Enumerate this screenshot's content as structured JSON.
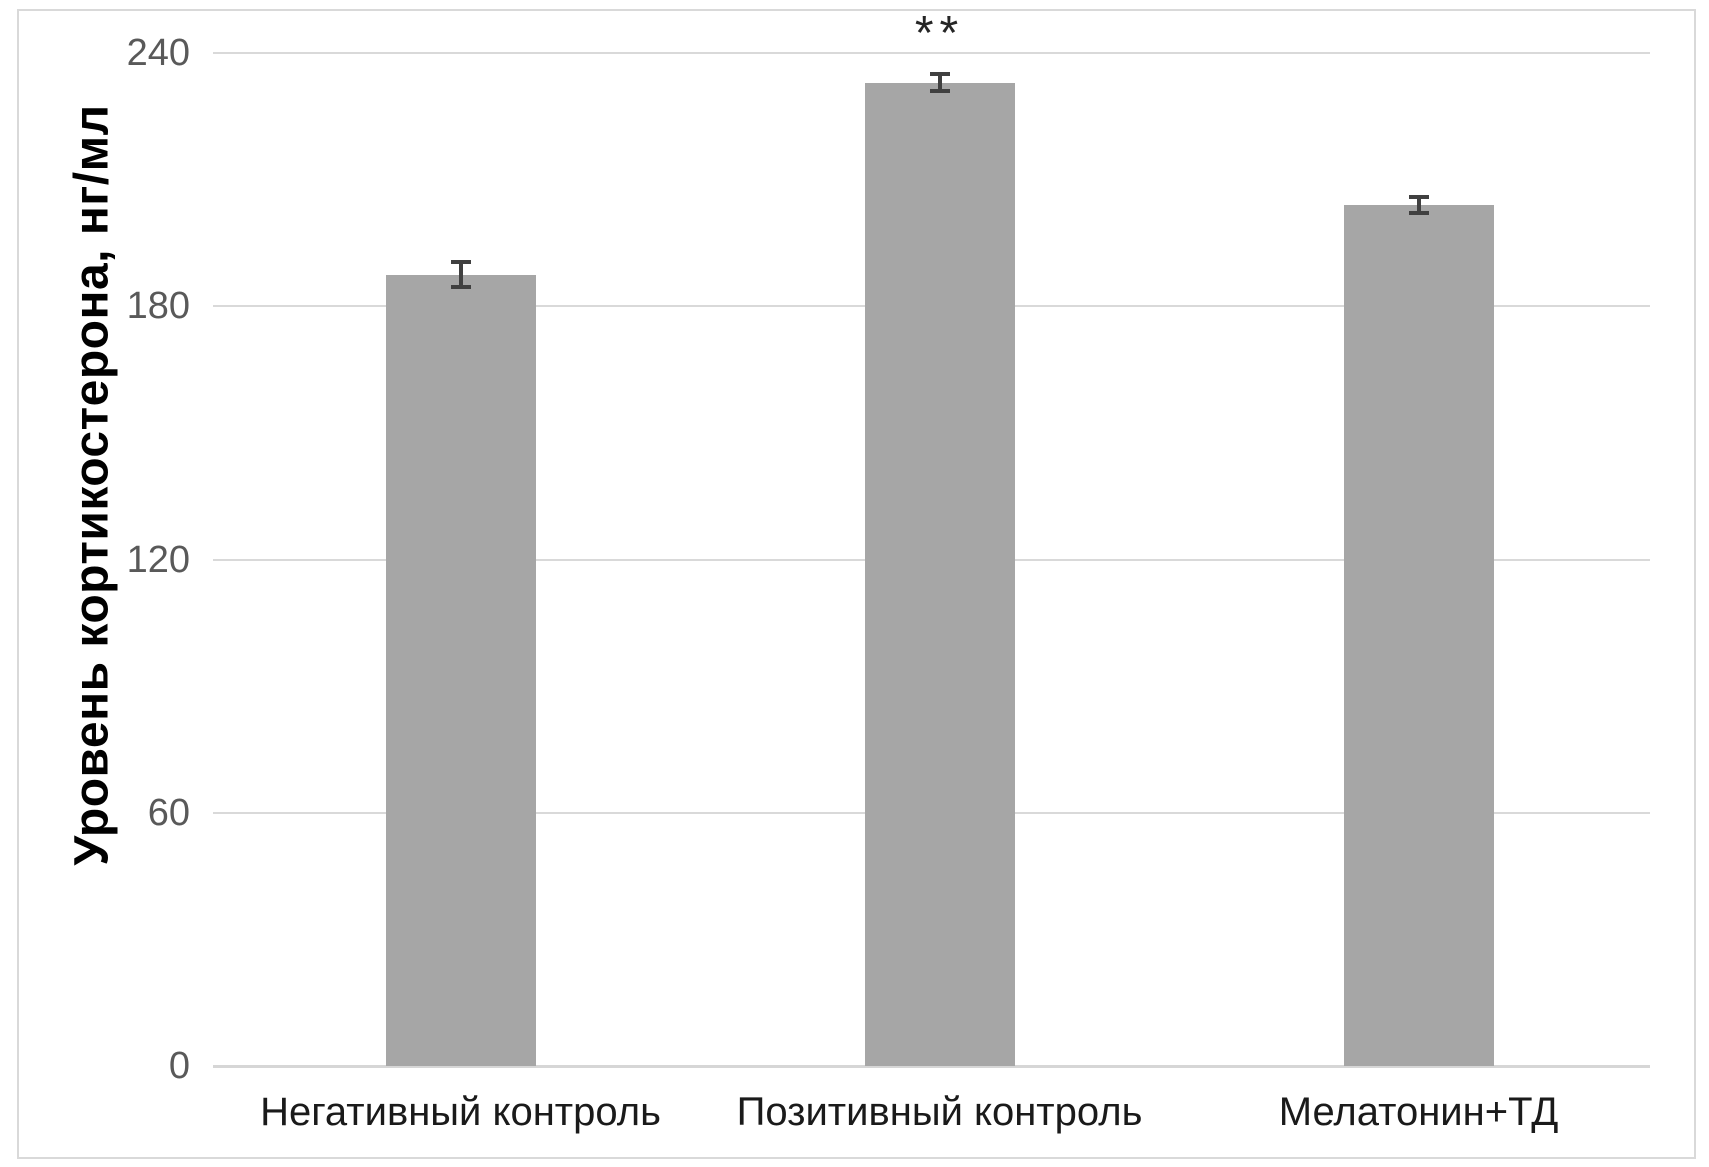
{
  "chart_data": {
    "type": "bar",
    "title": "",
    "categories": [
      "Негативный контроль",
      "Позитивный контроль",
      "Мелатонин+ТД"
    ],
    "values": [
      187.5,
      233,
      204
    ],
    "error_bars": [
      3,
      2.1,
      2
    ],
    "annotations": [
      {
        "category_index": 1,
        "text": "**"
      }
    ],
    "xlabel": "",
    "ylabel": "Уровень кортикостерона, нг/мл",
    "ylim": [
      0,
      240
    ],
    "yticks": [
      0,
      60,
      120,
      180,
      240
    ],
    "grid": true,
    "legend": false,
    "colors": {
      "bar_fill": "#a6a6a6",
      "error_bar": "#404040",
      "gridline": "#d9d9d9",
      "axis_line": "#d6d6d6",
      "tick_label": "#595959",
      "category_label": "#1a1a1a",
      "annotation": "#262626",
      "frame_border": "#d9d9d9",
      "background": "#ffffff"
    }
  }
}
